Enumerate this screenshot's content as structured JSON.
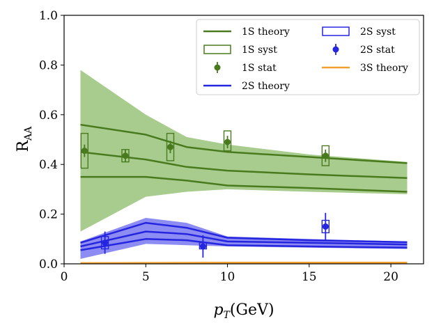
{
  "chart_data": {
    "type": "line",
    "title": "",
    "xlabel": "p_T(GeV)",
    "xlabel_main": "p",
    "xlabel_sub": "T",
    "xlabel_unit": "(GeV)",
    "ylabel": "R_AA",
    "ylabel_main": "R",
    "ylabel_sub": "AA",
    "xlim": [
      0,
      22
    ],
    "ylim": [
      0,
      1.0
    ],
    "x_ticks": [
      0,
      5,
      10,
      15,
      20
    ],
    "y_ticks": [
      0.0,
      0.2,
      0.4,
      0.6,
      0.8,
      1.0
    ],
    "x_tick_labels": [
      "0",
      "5",
      "10",
      "15",
      "20"
    ],
    "y_tick_labels": [
      "0.0",
      "0.2",
      "0.4",
      "0.6",
      "0.8",
      "1.0"
    ],
    "grid": false,
    "legend_position": "top-right",
    "colors": {
      "s1": "#4a7a1e",
      "s1_band": "#a7cc8d",
      "s2": "#2525e0",
      "s2_band": "#8c8cf2",
      "s3": "#f0a030"
    },
    "legend": [
      {
        "label": "1S theory",
        "kind": "line",
        "color": "#4a7a1e"
      },
      {
        "label": "1S syst",
        "kind": "box",
        "color": "#4a7a1e"
      },
      {
        "label": "1S stat",
        "kind": "point",
        "color": "#4a7a1e"
      },
      {
        "label": "2S theory",
        "kind": "line",
        "color": "#2525e0"
      },
      {
        "label": "2S syst",
        "kind": "box",
        "color": "#2525e0"
      },
      {
        "label": "2S stat",
        "kind": "point",
        "color": "#2525e0"
      },
      {
        "label": "3S theory",
        "kind": "line",
        "color": "#f0a030"
      }
    ],
    "series": [
      {
        "name": "1S theory band",
        "kind": "band",
        "x": [
          1,
          5,
          7.5,
          10,
          15,
          21
        ],
        "lower": [
          0.13,
          0.27,
          0.29,
          0.3,
          0.29,
          0.28
        ],
        "upper": [
          0.78,
          0.6,
          0.51,
          0.48,
          0.44,
          0.41
        ],
        "color": "#a7cc8d"
      },
      {
        "name": "1S theory upper",
        "kind": "line",
        "x": [
          1,
          5,
          7.5,
          10,
          15,
          21
        ],
        "values": [
          0.56,
          0.52,
          0.47,
          0.45,
          0.43,
          0.405
        ],
        "color": "#4a7a1e"
      },
      {
        "name": "1S theory central",
        "kind": "line",
        "x": [
          1,
          5,
          7.5,
          10,
          15,
          21
        ],
        "values": [
          0.45,
          0.42,
          0.39,
          0.375,
          0.36,
          0.345
        ],
        "color": "#4a7a1e"
      },
      {
        "name": "1S theory lower",
        "kind": "line",
        "x": [
          1,
          5,
          7.5,
          10,
          15,
          21
        ],
        "values": [
          0.35,
          0.35,
          0.335,
          0.315,
          0.305,
          0.29
        ],
        "color": "#4a7a1e"
      },
      {
        "name": "2S theory band",
        "kind": "band",
        "x": [
          1,
          5,
          7.5,
          10,
          15,
          21
        ],
        "lower": [
          0.02,
          0.08,
          0.075,
          0.07,
          0.065,
          0.06
        ],
        "upper": [
          0.09,
          0.185,
          0.165,
          0.11,
          0.1,
          0.09
        ],
        "color": "#8c8cf2"
      },
      {
        "name": "2S theory upper",
        "kind": "line",
        "x": [
          1,
          5,
          7.5,
          10,
          15,
          21
        ],
        "values": [
          0.085,
          0.165,
          0.145,
          0.105,
          0.095,
          0.087
        ],
        "color": "#2525e0"
      },
      {
        "name": "2S theory central",
        "kind": "line",
        "x": [
          1,
          5,
          7.5,
          10,
          15,
          21
        ],
        "values": [
          0.07,
          0.13,
          0.12,
          0.09,
          0.085,
          0.078
        ],
        "color": "#2525e0"
      },
      {
        "name": "2S theory lower",
        "kind": "line",
        "x": [
          1,
          5,
          7.5,
          10,
          15,
          21
        ],
        "values": [
          0.055,
          0.1,
          0.095,
          0.075,
          0.07,
          0.065
        ],
        "color": "#2525e0"
      },
      {
        "name": "3S theory",
        "kind": "line",
        "x": [
          1,
          5,
          10,
          15,
          21
        ],
        "values": [
          0.003,
          0.004,
          0.005,
          0.005,
          0.005
        ],
        "color": "#f0a030"
      }
    ],
    "points": [
      {
        "series": "1S",
        "x": 1.25,
        "y": 0.455,
        "stat": 0.025,
        "syst_lo": 0.385,
        "syst_hi": 0.525,
        "color": "#4a7a1e"
      },
      {
        "series": "1S",
        "x": 3.75,
        "y": 0.435,
        "stat": 0.025,
        "syst_lo": 0.41,
        "syst_hi": 0.46,
        "color": "#4a7a1e"
      },
      {
        "series": "1S",
        "x": 6.5,
        "y": 0.47,
        "stat": 0.025,
        "syst_lo": 0.415,
        "syst_hi": 0.525,
        "color": "#4a7a1e"
      },
      {
        "series": "1S",
        "x": 10,
        "y": 0.49,
        "stat": 0.025,
        "syst_lo": 0.455,
        "syst_hi": 0.535,
        "color": "#4a7a1e"
      },
      {
        "series": "1S",
        "x": 16,
        "y": 0.435,
        "stat": 0.025,
        "syst_lo": 0.395,
        "syst_hi": 0.475,
        "color": "#4a7a1e"
      },
      {
        "series": "2S",
        "x": 2.5,
        "y": 0.085,
        "stat": 0.045,
        "syst_lo": 0.06,
        "syst_hi": 0.11,
        "color": "#2525e0"
      },
      {
        "series": "2S",
        "x": 8.5,
        "y": 0.07,
        "stat": 0.045,
        "syst_lo": 0.06,
        "syst_hi": 0.085,
        "color": "#2525e0"
      },
      {
        "series": "2S",
        "x": 16,
        "y": 0.15,
        "stat": 0.055,
        "syst_lo": 0.125,
        "syst_hi": 0.175,
        "color": "#2525e0"
      }
    ]
  }
}
